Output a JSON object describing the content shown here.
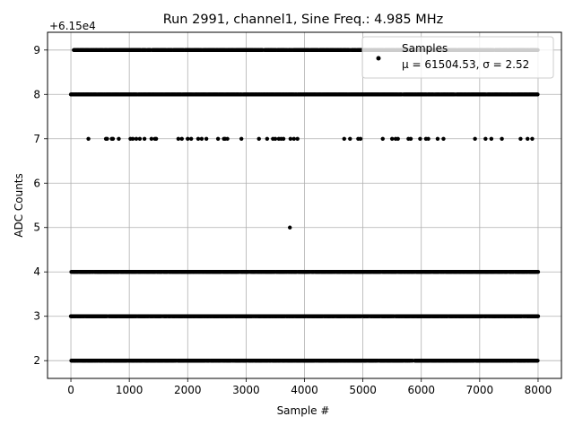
{
  "chart_data": {
    "type": "scatter",
    "title": "Run 2991, channel1, Sine Freq.: 4.985 MHz",
    "xlabel": "Sample #",
    "ylabel": "ADC Counts",
    "y_offset_label": "+6.15e4",
    "xlim": [
      -400,
      8400
    ],
    "ylim": [
      1.6,
      9.4
    ],
    "x_ticks": [
      0,
      1000,
      2000,
      3000,
      4000,
      5000,
      6000,
      7000,
      8000
    ],
    "x_tick_labels": [
      "0",
      "1000",
      "2000",
      "3000",
      "4000",
      "5000",
      "6000",
      "7000",
      "8000"
    ],
    "y_ticks": [
      2,
      3,
      4,
      5,
      6,
      7,
      8,
      9
    ],
    "y_tick_labels": [
      "2",
      "3",
      "4",
      "5",
      "6",
      "7",
      "8",
      "9"
    ],
    "grid": true,
    "legend_position": "top-right",
    "series": [
      {
        "name": "Samples",
        "stats_label": "μ = 61504.53, σ = 2.52",
        "color": "#000000",
        "marker": "dot",
        "sample_range": [
          0,
          8000
        ],
        "value_offset": 61500,
        "levels": [
          {
            "value": 2,
            "density": "dense",
            "x_min": 0,
            "x_max": 8000
          },
          {
            "value": 3,
            "density": "dense",
            "x_min": 0,
            "x_max": 8000
          },
          {
            "value": 4,
            "density": "dense",
            "x_min": 0,
            "x_max": 8000
          },
          {
            "value": 5,
            "density": "single",
            "x": [
              3750
            ]
          },
          {
            "value": 7,
            "density": "sparse",
            "x_min": 0,
            "x_max": 7950
          },
          {
            "value": 8,
            "density": "dense",
            "x_min": 0,
            "x_max": 8000
          },
          {
            "value": 9,
            "density": "dense",
            "x_min": 50,
            "x_max": 8000
          }
        ]
      }
    ]
  },
  "colors": {
    "grid": "#b0b0b0",
    "axes": "#000000",
    "legend_border": "#cccccc"
  }
}
